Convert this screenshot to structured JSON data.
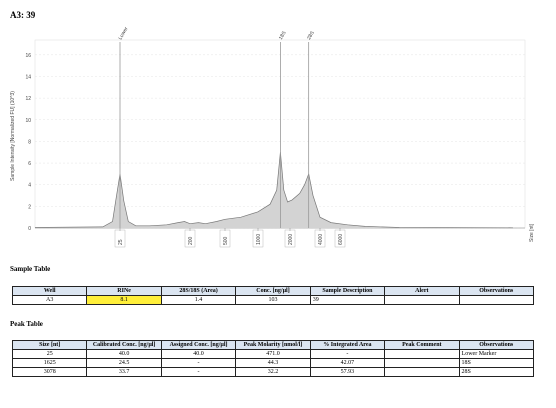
{
  "header": {
    "title": "A3: 39"
  },
  "electropherogram": {
    "y_label": "Sample Intensity [Normalized FU] (10^3)",
    "x_label": "Size [nt]",
    "ylim": [
      0,
      17
    ],
    "yticks": [
      0,
      2,
      4,
      6,
      8,
      10,
      12,
      14,
      16
    ],
    "xticks": [
      25,
      200,
      500,
      1000,
      2000,
      4000,
      6000
    ],
    "peaks": [
      {
        "label": "Lower",
        "x": 25
      },
      {
        "label": "18S",
        "x": 1625
      },
      {
        "label": "28S",
        "x": 3078
      }
    ],
    "trace": {
      "x": [
        2,
        15,
        20,
        22,
        25,
        28,
        32,
        40,
        60,
        100,
        140,
        170,
        200,
        250,
        300,
        400,
        500,
        700,
        1000,
        1300,
        1500,
        1625,
        1750,
        1900,
        2100,
        2500,
        2800,
        3078,
        3400,
        4000,
        5000,
        7000,
        10000,
        20000,
        200000
      ],
      "y": [
        0.05,
        0.1,
        0.6,
        2.5,
        5.0,
        2.5,
        0.6,
        0.2,
        0.2,
        0.3,
        0.5,
        0.6,
        0.4,
        0.5,
        0.4,
        0.6,
        0.8,
        1.0,
        1.5,
        2.2,
        3.5,
        7.0,
        3.5,
        2.4,
        2.6,
        3.2,
        4.0,
        5.0,
        3.0,
        1.0,
        0.5,
        0.3,
        0.15,
        0.05,
        0.02
      ]
    }
  },
  "sample_table": {
    "title": "Sample Table",
    "headers": [
      "Well",
      "RINe",
      "28S/18S (Area)",
      "Conc. [ng/µl]",
      "Sample Description",
      "Alert",
      "Observations"
    ],
    "rows": [
      {
        "well": "A3",
        "rine": "8.1",
        "ratio": "1.4",
        "conc": "103",
        "description": "39"
      }
    ]
  },
  "peak_table": {
    "title": "Peak Table",
    "headers": [
      "Size [nt]",
      "Calibrated Conc. [ng/µl]",
      "Assigned Conc. [ng/µl]",
      "Peak Molarity [nmol/l]",
      "% Integrated Area",
      "Peak Comment",
      "Observations"
    ],
    "rows": [
      {
        "size": "25",
        "calibrated": "40.0",
        "assigned": "40.0",
        "molarity": "471.0",
        "area": "-",
        "observation": "Lower Marker"
      },
      {
        "size": "1625",
        "calibrated": "24.5",
        "assigned": "-",
        "molarity": "44.3",
        "area": "42.07",
        "observation": "18S"
      },
      {
        "size": "3078",
        "calibrated": "33.7",
        "assigned": "-",
        "molarity": "32.2",
        "area": "57.93",
        "observation": "28S"
      }
    ]
  }
}
